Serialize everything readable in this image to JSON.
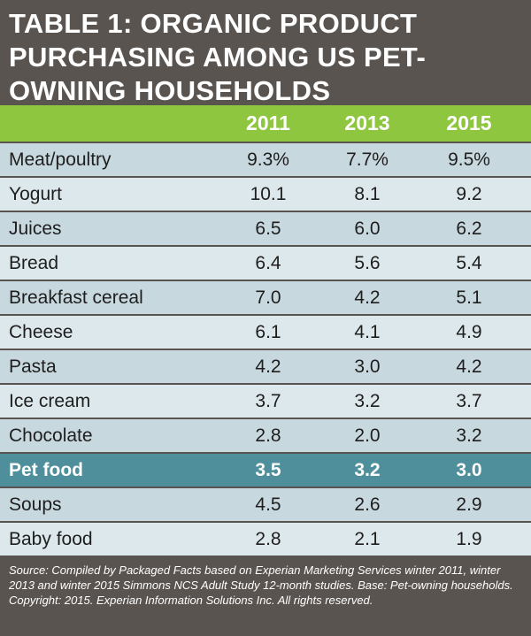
{
  "table": {
    "title": "TABLE 1: ORGANIC PRODUCT PURCHASING AMONG US PET-OWNING HOUSEHOLDS",
    "columns": [
      "2011",
      "2013",
      "2015"
    ],
    "rows": [
      {
        "label": "Meat/poultry",
        "values": [
          "9.3%",
          "7.7%",
          "9.5%"
        ]
      },
      {
        "label": "Yogurt",
        "values": [
          "10.1",
          "8.1",
          "9.2"
        ]
      },
      {
        "label": "Juices",
        "values": [
          "6.5",
          "6.0",
          "6.2"
        ]
      },
      {
        "label": "Bread",
        "values": [
          "6.4",
          "5.6",
          "5.4"
        ]
      },
      {
        "label": "Breakfast cereal",
        "values": [
          "7.0",
          "4.2",
          "5.1"
        ]
      },
      {
        "label": "Cheese",
        "values": [
          "6.1",
          "4.1",
          "4.9"
        ]
      },
      {
        "label": "Pasta",
        "values": [
          "4.2",
          "3.0",
          "4.2"
        ]
      },
      {
        "label": "Ice cream",
        "values": [
          "3.7",
          "3.2",
          "3.7"
        ]
      },
      {
        "label": "Chocolate",
        "values": [
          "2.8",
          "2.0",
          "3.2"
        ]
      },
      {
        "label": "Pet food",
        "values": [
          "3.5",
          "3.2",
          "3.0"
        ]
      },
      {
        "label": "Soups",
        "values": [
          "4.5",
          "2.6",
          "2.9"
        ]
      },
      {
        "label": "Baby food",
        "values": [
          "2.8",
          "2.1",
          "1.9"
        ]
      }
    ],
    "source": "Source: Compiled by Packaged Facts based on Experian Marketing Services winter 2011, winter 2013 and winter 2015 Simmons NCS Adult Study 12-month studies. Base: Pet-owning households. Copyright: 2015. Experian Information Solutions Inc. All rights reserved."
  },
  "colors": {
    "background": "#5a5450",
    "header": "#8ec63f",
    "row": "#c8d8df",
    "row_alt": "#dde8ec",
    "highlight": "#4f8e9b"
  }
}
